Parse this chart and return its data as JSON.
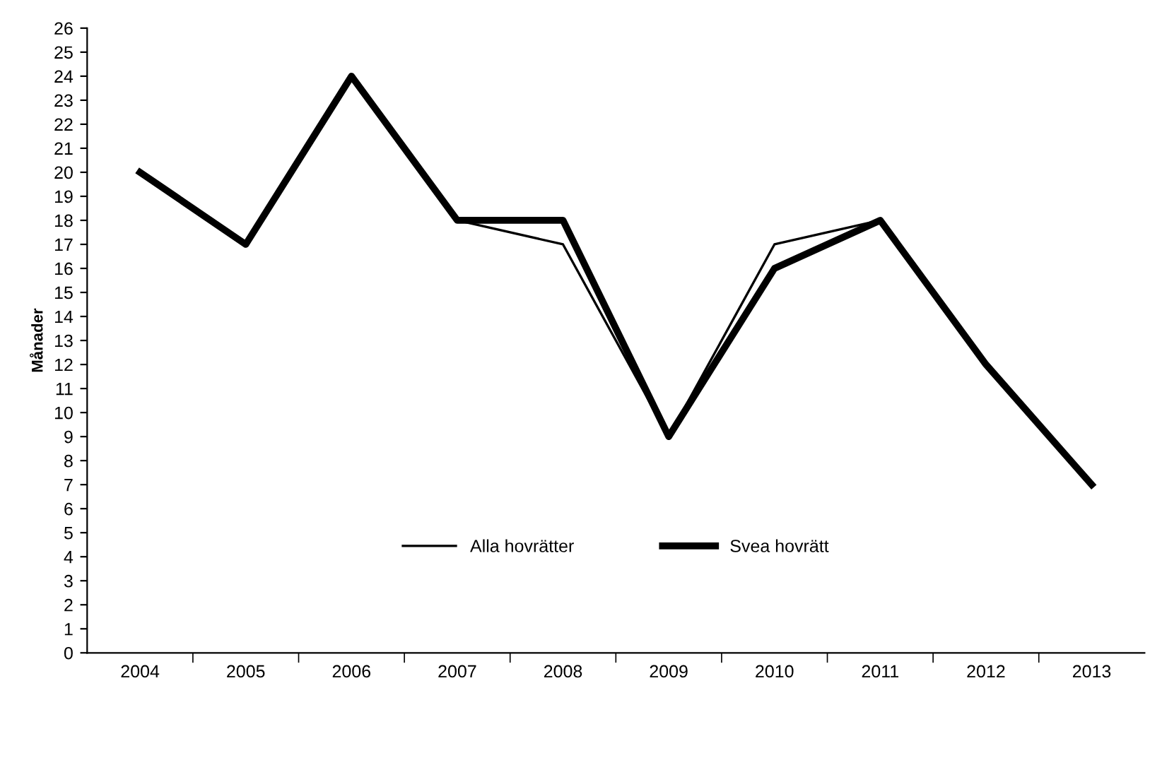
{
  "chart_data": {
    "type": "line",
    "ylabel": "Månader",
    "categories": [
      "2004",
      "2005",
      "2006",
      "2007",
      "2008",
      "2009",
      "2010",
      "2011",
      "2012",
      "2013"
    ],
    "series": [
      {
        "name": "Alla hovrätter",
        "color": "#000000",
        "values": [
          20,
          17,
          24,
          18,
          17,
          9,
          17,
          18,
          12,
          7
        ]
      },
      {
        "name": "Svea hovrätt",
        "color": "#000000",
        "values": [
          20,
          17,
          24,
          18,
          18,
          9,
          16,
          18,
          12,
          7
        ]
      }
    ],
    "ylim": [
      0,
      26
    ],
    "yticks": [
      0,
      1,
      2,
      3,
      4,
      5,
      6,
      7,
      8,
      9,
      10,
      11,
      12,
      13,
      14,
      15,
      16,
      17,
      18,
      19,
      20,
      21,
      22,
      23,
      24,
      25,
      26
    ],
    "grid": false,
    "legend": "bottom",
    "marker": "none",
    "line_style": "solid"
  }
}
